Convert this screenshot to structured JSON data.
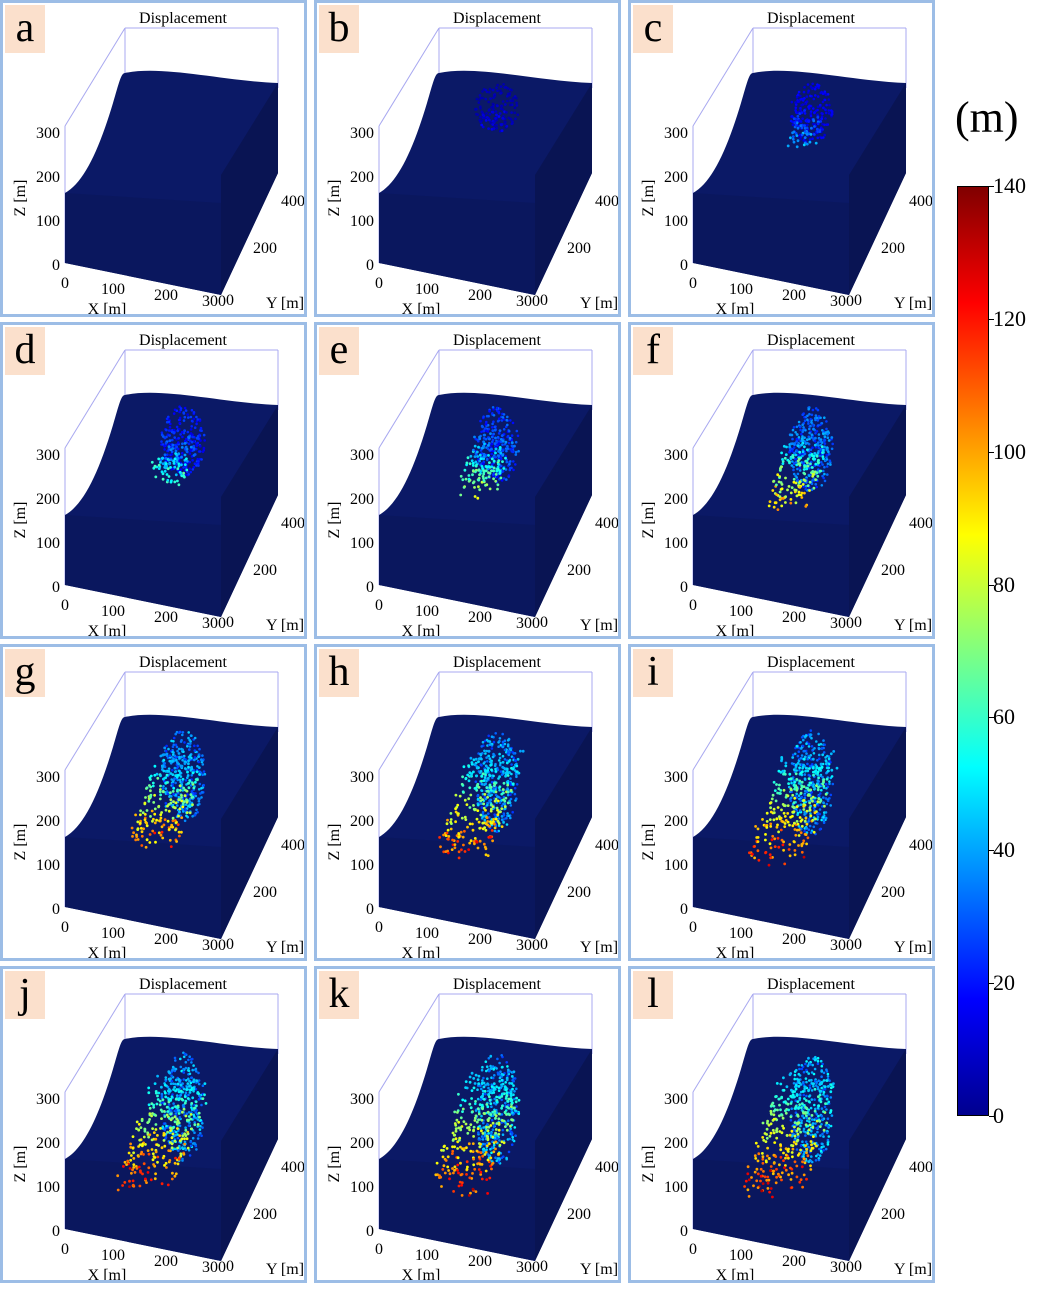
{
  "chart_data": {
    "type": "scatter",
    "plot_title": "Displacement",
    "xlabel": "X [m]",
    "ylabel": "Y [m]",
    "zlabel": "Z [m]",
    "x_ticks": [
      "0",
      "100",
      "200",
      "300"
    ],
    "y_ticks": [
      "0",
      "200",
      "400"
    ],
    "z_ticks": [
      "0",
      "100",
      "200",
      "300"
    ],
    "panels": [
      {
        "label": "a",
        "spread": 0.0,
        "max_disp": 0
      },
      {
        "label": "b",
        "spread": 0.1,
        "max_disp": 20
      },
      {
        "label": "c",
        "spread": 0.25,
        "max_disp": 50
      },
      {
        "label": "d",
        "spread": 0.4,
        "max_disp": 70
      },
      {
        "label": "e",
        "spread": 0.5,
        "max_disp": 90
      },
      {
        "label": "f",
        "spread": 0.6,
        "max_disp": 110
      },
      {
        "label": "g",
        "spread": 0.75,
        "max_disp": 125
      },
      {
        "label": "h",
        "spread": 0.85,
        "max_disp": 130
      },
      {
        "label": "i",
        "spread": 0.9,
        "max_disp": 135
      },
      {
        "label": "j",
        "spread": 0.95,
        "max_disp": 138
      },
      {
        "label": "k",
        "spread": 1.0,
        "max_disp": 140
      },
      {
        "label": "l",
        "spread": 1.0,
        "max_disp": 140
      }
    ],
    "colorbar": {
      "unit": "(m)",
      "min": 0,
      "max": 140,
      "ticks": [
        "0",
        "20",
        "40",
        "60",
        "80",
        "100",
        "120",
        "140"
      ],
      "colormap": [
        "#00008f",
        "#0000ff",
        "#0080ff",
        "#00ffff",
        "#80ff80",
        "#ffff00",
        "#ff8000",
        "#ff0000",
        "#800000"
      ]
    }
  }
}
